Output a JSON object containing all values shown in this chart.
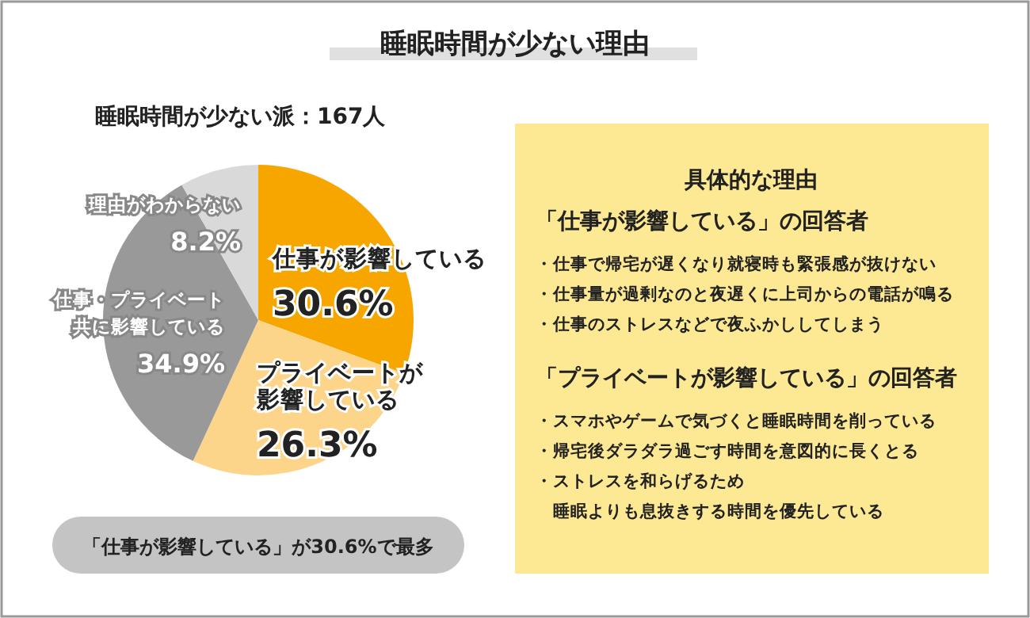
{
  "chart_data": {
    "type": "pie",
    "title": "睡眠時間が少ない理由",
    "subtitle": "睡眠時間が少ない派：167人",
    "categories": [
      "仕事が影響している",
      "プライベートが影響している",
      "仕事・プライベート共に影響している",
      "理由がわからない"
    ],
    "values": [
      30.6,
      26.3,
      34.9,
      8.2
    ],
    "value_labels": [
      "30.6%",
      "26.3%",
      "34.9%",
      "8.2%"
    ],
    "colors": [
      "#f7a600",
      "#fdd58a",
      "#999999",
      "#d9d9d9"
    ],
    "annotations": [
      "「仕事が影響している」が30.6%で最多",
      "具体的な理由",
      "「仕事が影響している」の回答者",
      "・仕事で帰宅が遅くなり就寝時も緊張感が抜けない",
      "・仕事量が過剰なのと夜遅くに上司からの電話が鳴る",
      "・仕事のストレスなどで夜ふかししてしまう",
      "「プライベートが影響している」の回答者",
      "・スマホやゲームで気づくと睡眠時間を削っている",
      "・帰宅後ダラダラ過ごす時間を意図的に長くとる",
      "・ストレスを和らげるため睡眠よりも息抜きする時間を優先している"
    ]
  }
}
